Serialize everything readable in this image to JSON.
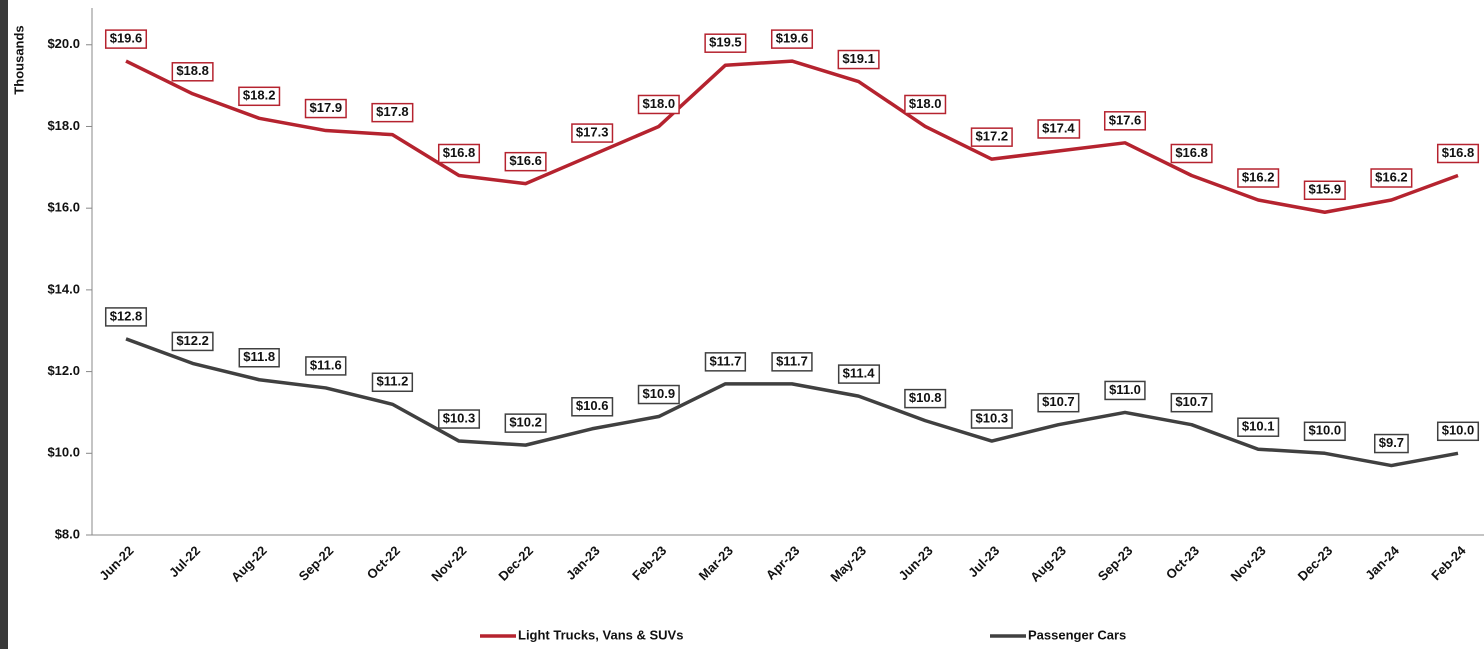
{
  "chart_data": {
    "type": "line",
    "y_label": "Thousands",
    "categories": [
      "Jun-22",
      "Jul-22",
      "Aug-22",
      "Sep-22",
      "Oct-22",
      "Nov-22",
      "Dec-22",
      "Jan-23",
      "Feb-23",
      "Mar-23",
      "Apr-23",
      "May-23",
      "Jun-23",
      "Jul-23",
      "Aug-23",
      "Sep-23",
      "Oct-23",
      "Nov-23",
      "Dec-23",
      "Jan-24",
      "Feb-24"
    ],
    "series": [
      {
        "name": "Light Trucks, Vans & SUVs",
        "color": "#b5232f",
        "values": [
          19.6,
          18.8,
          18.2,
          17.9,
          17.8,
          16.8,
          16.6,
          17.3,
          18.0,
          19.5,
          19.6,
          19.1,
          18.0,
          17.2,
          17.4,
          17.6,
          16.8,
          16.2,
          15.9,
          16.2,
          16.8
        ],
        "value_labels": [
          "$19.6",
          "$18.8",
          "$18.2",
          "$17.9",
          "$17.8",
          "$16.8",
          "$16.6",
          "$17.3",
          "$18.0",
          "$19.5",
          "$19.6",
          "$19.1",
          "$18.0",
          "$17.2",
          "$17.4",
          "$17.6",
          "$16.8",
          "$16.2",
          "$15.9",
          "$16.2",
          "$16.8"
        ]
      },
      {
        "name": "Passenger Cars",
        "color": "#404040",
        "values": [
          12.8,
          12.2,
          11.8,
          11.6,
          11.2,
          10.3,
          10.2,
          10.6,
          10.9,
          11.7,
          11.7,
          11.4,
          10.8,
          10.3,
          10.7,
          11.0,
          10.7,
          10.1,
          10.0,
          9.7,
          10.0
        ],
        "value_labels": [
          "$12.8",
          "$12.2",
          "$11.8",
          "$11.6",
          "$11.2",
          "$10.3",
          "$10.2",
          "$10.6",
          "$10.9",
          "$11.7",
          "$11.7",
          "$11.4",
          "$10.8",
          "$10.3",
          "$10.7",
          "$11.0",
          "$10.7",
          "$10.1",
          "$10.0",
          "$9.7",
          "$10.0"
        ]
      }
    ],
    "ylim": [
      8,
      20.9
    ],
    "yticks": [
      {
        "value": 8,
        "label": "$8.0"
      },
      {
        "value": 10,
        "label": "$10.0"
      },
      {
        "value": 12,
        "label": "$12.0"
      },
      {
        "value": 14,
        "label": "$14.0"
      },
      {
        "value": 16,
        "label": "$16.0"
      },
      {
        "value": 18,
        "label": "$18.0"
      },
      {
        "value": 20,
        "label": "$20.0"
      }
    ],
    "grid": false,
    "legend": "bottom"
  }
}
